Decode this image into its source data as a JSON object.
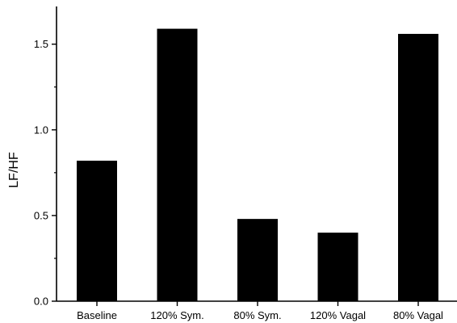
{
  "chart_data": {
    "type": "bar",
    "title": "",
    "xlabel": "",
    "ylabel": "LF/HF",
    "categories": [
      "Baseline",
      "120% Sym.",
      "80% Sym.",
      "120% Vagal",
      "80% Vagal"
    ],
    "values": [
      0.82,
      1.59,
      0.48,
      0.4,
      1.56
    ],
    "ylim": [
      0,
      1.72
    ],
    "yticks": [
      0.0,
      0.5,
      1.0,
      1.5
    ],
    "ytick_labels": [
      "0.0",
      "0.5",
      "1.0",
      "1.5"
    ],
    "grid": false,
    "legend": "none",
    "bar_color": "#000000",
    "axis_color": "#000000"
  }
}
